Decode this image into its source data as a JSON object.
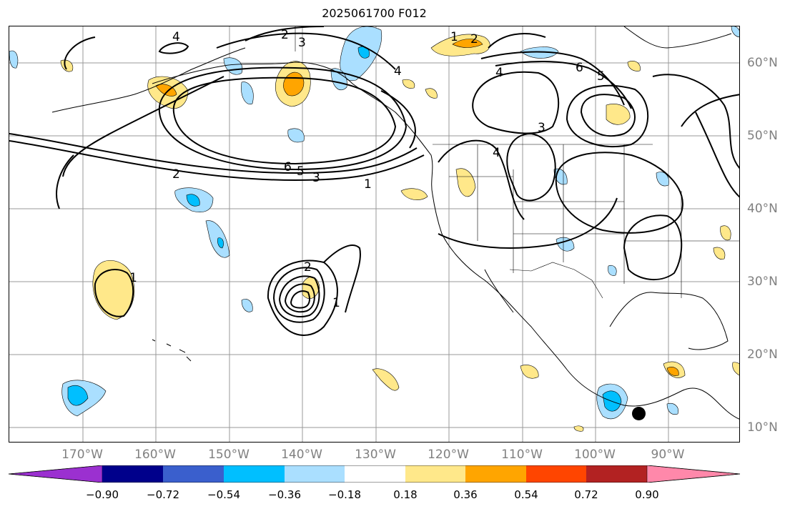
{
  "title": "2025061700 F012",
  "lon_labels": [
    "170°W",
    "160°W",
    "150°W",
    "140°W",
    "130°W",
    "120°W",
    "110°W",
    "100°W",
    "90°W"
  ],
  "lat_labels": [
    "60°N",
    "50°N",
    "40°N",
    "30°N",
    "20°N",
    "10°N"
  ],
  "colorbar": {
    "tick_labels": [
      "−0.90",
      "−0.72",
      "−0.54",
      "−0.36",
      "−0.18",
      "0.18",
      "0.36",
      "0.54",
      "0.72",
      "0.90"
    ],
    "colors": [
      "#9b30d0",
      "#00008b",
      "#3a5fcd",
      "#00bfff",
      "#aadfff",
      "#ffffff",
      "#ffe88a",
      "#ffa500",
      "#ff4500",
      "#b22222",
      "#ff88aa"
    ]
  },
  "contour_labels": [
    "1",
    "2",
    "3",
    "4",
    "5",
    "6"
  ],
  "colors": {
    "shade_light_blue": "#aadfff",
    "shade_blue": "#00bfff",
    "shade_yellow": "#ffe88a",
    "shade_orange": "#ffa500",
    "contour": "#000000",
    "grid": "#999999"
  }
}
